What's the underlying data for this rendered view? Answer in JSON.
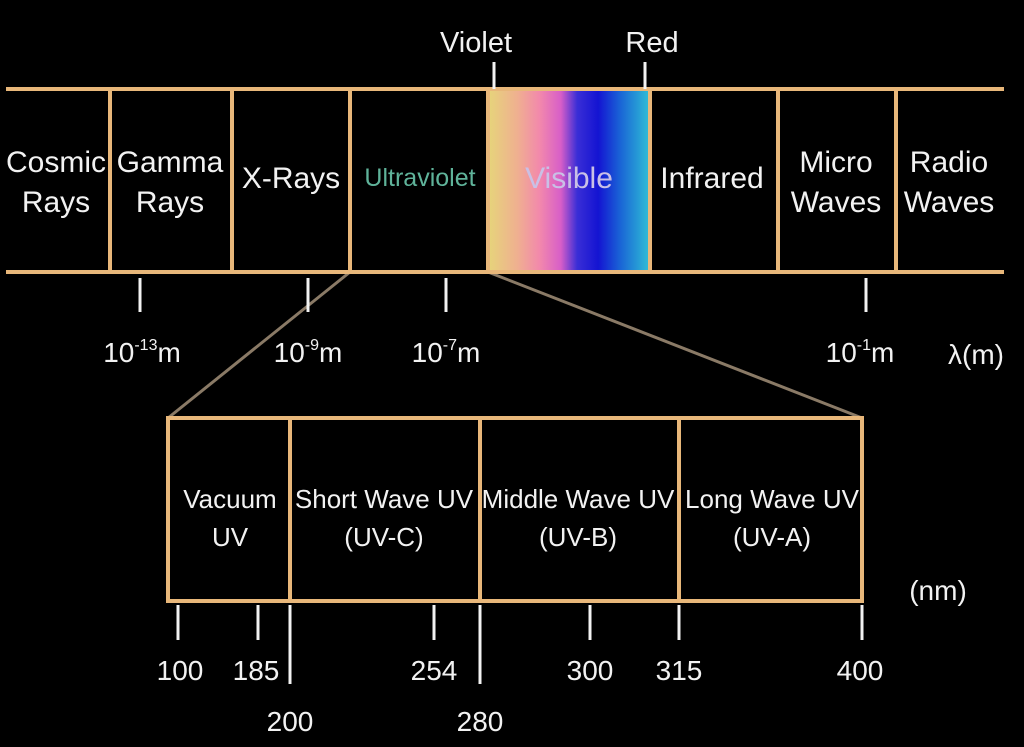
{
  "markers": {
    "violet": "Violet",
    "red": "Red"
  },
  "bands": [
    {
      "line1": "Cosmic",
      "line2": "Rays"
    },
    {
      "line1": "Gamma",
      "line2": "Rays"
    },
    {
      "line1": "X-Rays",
      "line2": ""
    },
    {
      "line1": "Ultraviolet",
      "line2": ""
    },
    {
      "line1": "Visible",
      "line2": ""
    },
    {
      "line1": "Infrared",
      "line2": ""
    },
    {
      "line1": "Micro",
      "line2": "Waves"
    },
    {
      "line1": "Radio",
      "line2": "Waves"
    }
  ],
  "wavelength_ticks": [
    {
      "base": "10",
      "exp": "-13",
      "unit": "m"
    },
    {
      "base": "10",
      "exp": "-9",
      "unit": "m"
    },
    {
      "base": "10",
      "exp": "-7",
      "unit": "m"
    },
    {
      "base": "10",
      "exp": "-1",
      "unit": "m"
    }
  ],
  "wavelength_unit": "λ(m)",
  "uv_bands": [
    {
      "line1": "Vacuum",
      "line2": "UV"
    },
    {
      "line1": "Short Wave UV",
      "line2": "(UV-C)"
    },
    {
      "line1": "Middle Wave UV",
      "line2": "(UV-B)"
    },
    {
      "line1": "Long Wave UV",
      "line2": "(UV-A)"
    }
  ],
  "uv_unit": "(nm)",
  "uv_ticks": [
    "100",
    "185",
    "200",
    "254",
    "280",
    "300",
    "315",
    "400"
  ],
  "colors": {
    "frame": "#e8b77a",
    "zoom_lines": "#8a7a66",
    "ultraviolet_label": "#5fb39a",
    "visible_gradient": [
      "#e8d27a",
      "#f08fa8",
      "#e05ec4",
      "#3b2fd0",
      "#1a1ad8",
      "#1a6fd8",
      "#2fb8d8"
    ]
  }
}
